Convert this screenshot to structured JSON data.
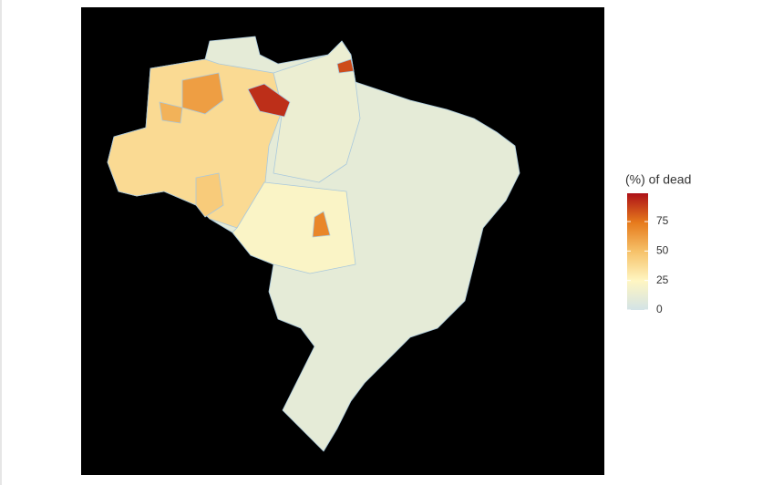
{
  "map": {
    "legend": {
      "title": "(%) of dead",
      "ticks": [
        0,
        25,
        50,
        75
      ],
      "limits": [
        0,
        99
      ],
      "colors": [
        "#d3e3e6",
        "#fff6c2",
        "#f6c26a",
        "#e67a1c",
        "#ad1118"
      ]
    },
    "areas": [
      {
        "value": 10
      },
      {
        "value": 38
      },
      {
        "value": 22
      },
      {
        "value": 14
      },
      {
        "value": 62
      },
      {
        "value": 92
      },
      {
        "value": 70
      },
      {
        "value": 55
      },
      {
        "value": 85
      },
      {
        "value": 45
      }
    ]
  }
}
